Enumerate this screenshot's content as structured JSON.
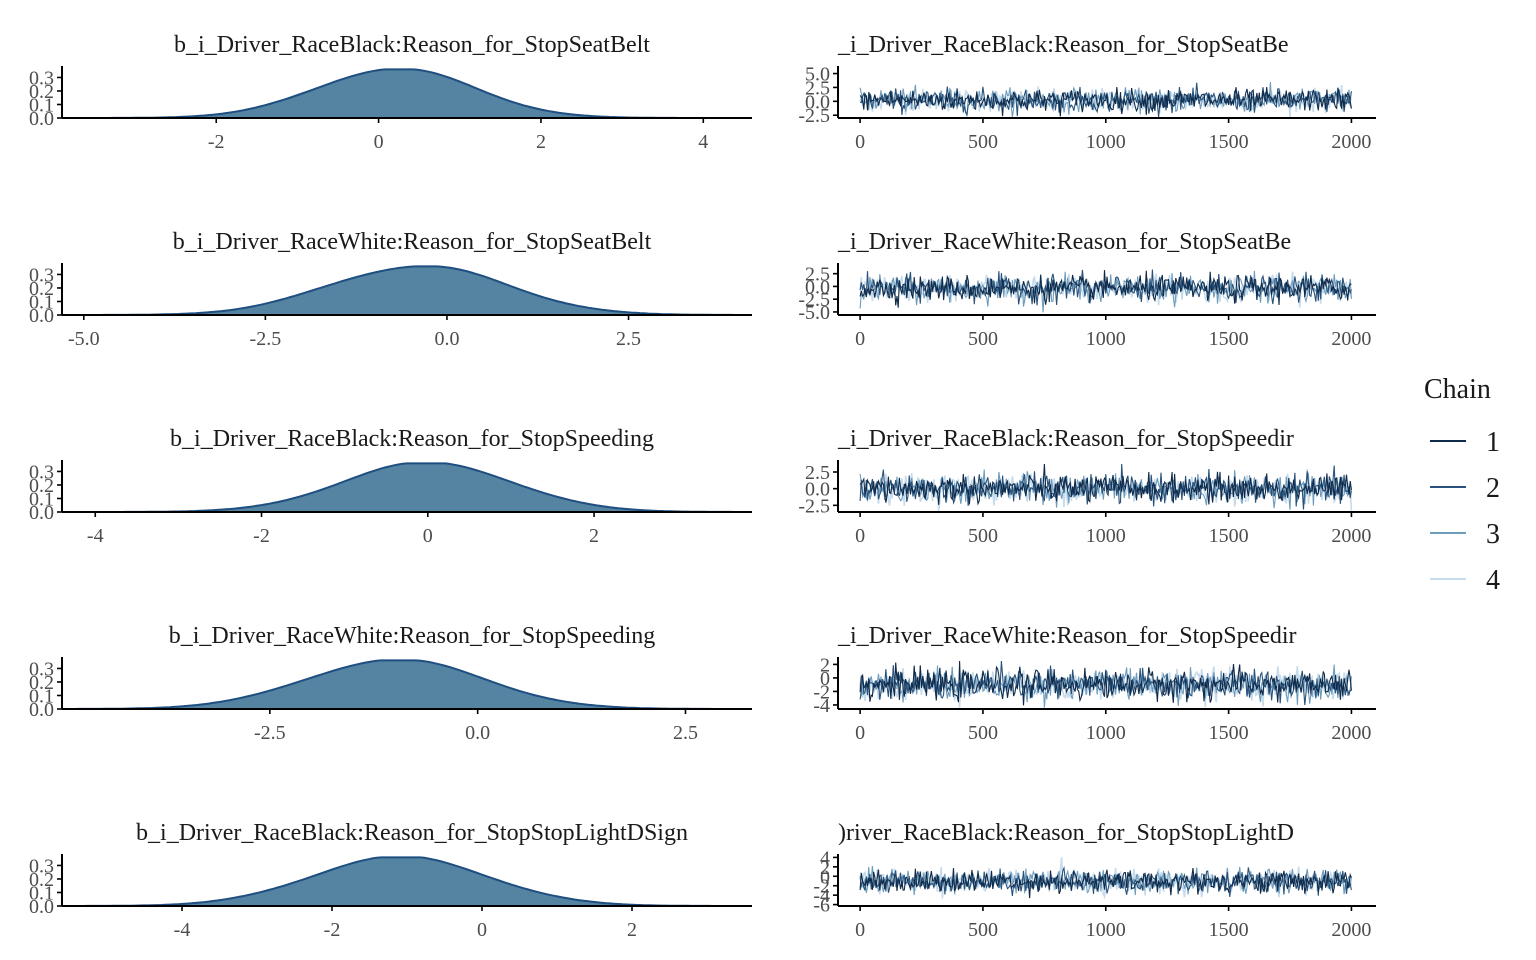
{
  "chart_data": {
    "type": "mcmc-diagnostics",
    "legend": {
      "title": "Chain",
      "placement": "right",
      "entries": [
        {
          "label": "1",
          "color": "#0f2a4a"
        },
        {
          "label": "2",
          "color": "#28527a"
        },
        {
          "label": "3",
          "color": "#6e9cbc"
        },
        {
          "label": "4",
          "color": "#c6dbec"
        }
      ]
    },
    "density_color": {
      "fill": "#5484a1",
      "line": "#1f4e80"
    },
    "rows": [
      {
        "parameter": "b_i_Driver_RaceBlack:Reason_for_StopSeatBelt",
        "trace_title": "_i_Driver_RaceBlack:Reason_for_StopSeatBe",
        "density": {
          "type": "area",
          "xlim": [
            -3.9,
            4.6
          ],
          "ylim": [
            0,
            0.37
          ],
          "mean": 0.2,
          "sd": 1.0,
          "xticks": [
            "-2",
            "0",
            "2",
            "4"
          ],
          "xtick_values": [
            -2,
            0,
            2,
            4
          ],
          "yticks": [
            "0.0",
            "0.1",
            "0.2",
            "0.3"
          ],
          "ytick_values": [
            0,
            0.1,
            0.2,
            0.3
          ]
        },
        "trace": {
          "type": "line",
          "xlim": [
            -90,
            2100
          ],
          "ylim": [
            -3.0,
            6.0
          ],
          "center": 0.2,
          "spread": 1.0,
          "xticks": [
            "0",
            "500",
            "1000",
            "1500",
            "2000"
          ],
          "xtick_values": [
            0,
            500,
            1000,
            1500,
            2000
          ],
          "yticks": [
            "-2.5",
            "0.0",
            "2.5",
            "5.0"
          ],
          "ytick_values": [
            -2.5,
            0,
            2.5,
            5.0
          ]
        }
      },
      {
        "parameter": "b_i_Driver_RaceWhite:Reason_for_StopSeatBelt",
        "trace_title": "_i_Driver_RaceWhite:Reason_for_StopSeatBe",
        "density": {
          "type": "area",
          "xlim": [
            -5.3,
            4.2
          ],
          "ylim": [
            0,
            0.37
          ],
          "mean": -0.4,
          "sd": 1.25,
          "xticks": [
            "-5.0",
            "-2.5",
            "0.0",
            "2.5"
          ],
          "xtick_values": [
            -5,
            -2.5,
            0,
            2.5
          ],
          "yticks": [
            "0.0",
            "0.1",
            "0.2",
            "0.3"
          ],
          "ytick_values": [
            0,
            0.1,
            0.2,
            0.3
          ]
        },
        "trace": {
          "type": "line",
          "xlim": [
            -90,
            2100
          ],
          "ylim": [
            -5.6,
            4.2
          ],
          "center": -0.4,
          "spread": 1.25,
          "xticks": [
            "0",
            "500",
            "1000",
            "1500",
            "2000"
          ],
          "xtick_values": [
            0,
            500,
            1000,
            1500,
            2000
          ],
          "yticks": [
            "-5.0",
            "-2.5",
            "0.0",
            "2.5"
          ],
          "ytick_values": [
            -5,
            -2.5,
            0,
            2.5
          ]
        }
      },
      {
        "parameter": "b_i_Driver_RaceBlack:Reason_for_StopSpeeding",
        "trace_title": "_i_Driver_RaceBlack:Reason_for_StopSpeedir",
        "density": {
          "type": "area",
          "xlim": [
            -4.4,
            3.9
          ],
          "ylim": [
            0,
            0.37
          ],
          "mean": 0.0,
          "sd": 1.05,
          "xticks": [
            "-4",
            "-2",
            "0",
            "2"
          ],
          "xtick_values": [
            -4,
            -2,
            0,
            2
          ],
          "yticks": [
            "0.0",
            "0.1",
            "0.2",
            "0.3"
          ],
          "ytick_values": [
            0,
            0.1,
            0.2,
            0.3
          ]
        },
        "trace": {
          "type": "line",
          "xlim": [
            -90,
            2100
          ],
          "ylim": [
            -3.5,
            4.0
          ],
          "center": 0.0,
          "spread": 1.05,
          "xticks": [
            "0",
            "500",
            "1000",
            "1500",
            "2000"
          ],
          "xtick_values": [
            0,
            500,
            1000,
            1500,
            2000
          ],
          "yticks": [
            "-2.5",
            "0.0",
            "2.5"
          ],
          "ytick_values": [
            -2.5,
            0,
            2.5
          ]
        }
      },
      {
        "parameter": "b_i_Driver_RaceWhite:Reason_for_StopSpeeding",
        "trace_title": "_i_Driver_RaceWhite:Reason_for_StopSpeedir",
        "density": {
          "type": "area",
          "xlim": [
            -5.0,
            3.3
          ],
          "ylim": [
            0,
            0.37
          ],
          "mean": -1.0,
          "sd": 1.1,
          "xticks": [
            "-2.5",
            "0.0",
            "2.5"
          ],
          "xtick_values": [
            -2.5,
            0,
            2.5
          ],
          "yticks": [
            "0.0",
            "0.1",
            "0.2",
            "0.3"
          ],
          "ytick_values": [
            0,
            0.1,
            0.2,
            0.3
          ]
        },
        "trace": {
          "type": "line",
          "xlim": [
            -90,
            2100
          ],
          "ylim": [
            -4.6,
            2.8
          ],
          "center": -1.0,
          "spread": 1.1,
          "xticks": [
            "0",
            "500",
            "1000",
            "1500",
            "2000"
          ],
          "xtick_values": [
            0,
            500,
            1000,
            1500,
            2000
          ],
          "yticks": [
            "-4",
            "-2",
            "0",
            "2"
          ],
          "ytick_values": [
            -4,
            -2,
            0,
            2
          ]
        }
      },
      {
        "parameter": "b_i_Driver_RaceBlack:Reason_for_StopStopLightDSign",
        "trace_title": ")river_RaceBlack:Reason_for_StopStopLightD",
        "density": {
          "type": "area",
          "xlim": [
            -5.6,
            3.6
          ],
          "ylim": [
            0,
            0.37
          ],
          "mean": -1.1,
          "sd": 1.2,
          "xticks": [
            "-4",
            "-2",
            "0",
            "2"
          ],
          "xtick_values": [
            -4,
            -2,
            0,
            2
          ],
          "yticks": [
            "0.0",
            "0.1",
            "0.2",
            "0.3"
          ],
          "ytick_values": [
            0,
            0.1,
            0.2,
            0.3
          ]
        },
        "trace": {
          "type": "line",
          "xlim": [
            -90,
            2100
          ],
          "ylim": [
            -6.3,
            4.3
          ],
          "center": -1.1,
          "spread": 1.2,
          "xticks": [
            "0",
            "500",
            "1000",
            "1500",
            "2000"
          ],
          "xtick_values": [
            0,
            500,
            1000,
            1500,
            2000
          ],
          "yticks": [
            "-6",
            "-4",
            "-2",
            "0",
            "2",
            "4"
          ],
          "ytick_values": [
            -6,
            -4,
            -2,
            0,
            2,
            4
          ]
        }
      }
    ]
  }
}
